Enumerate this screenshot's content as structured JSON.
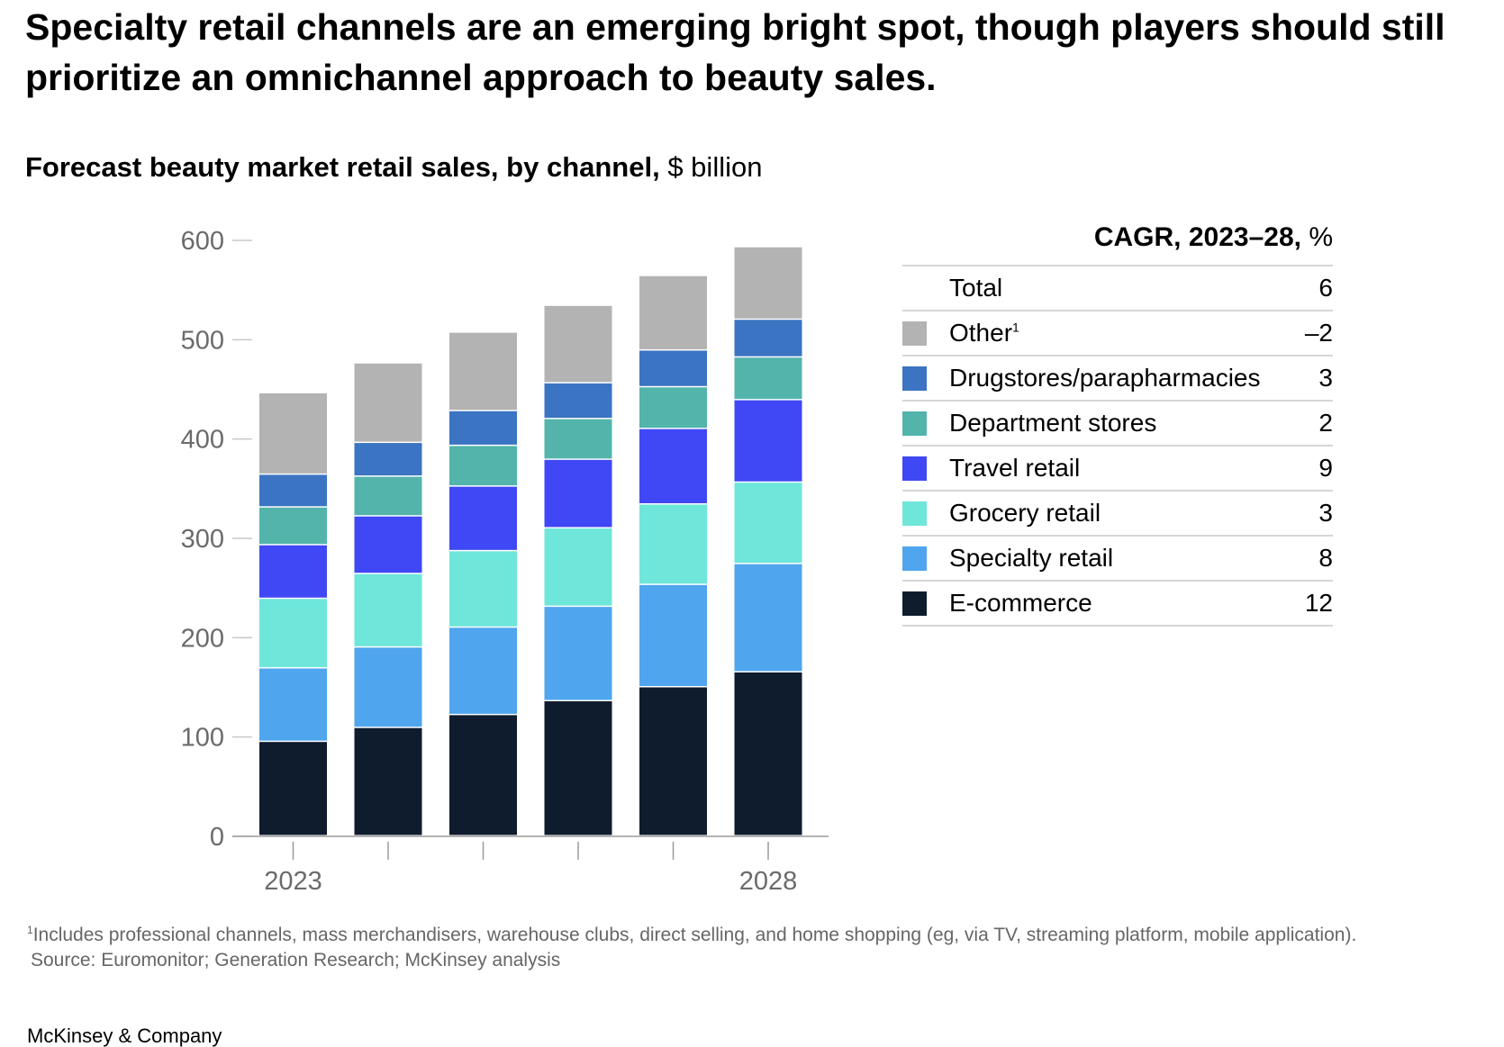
{
  "title": "Specialty retail channels are an emerging bright spot, though players should still prioritize an omnichannel approach to beauty sales.",
  "subtitle": {
    "bold": "Forecast beauty market retail sales, by channel,",
    "unit": " $ billion"
  },
  "chart_data": {
    "type": "bar",
    "stacked": true,
    "title": "Forecast beauty market retail sales, by channel, $ billion",
    "categories": [
      "2023",
      "2024",
      "2025",
      "2026",
      "2027",
      "2028"
    ],
    "x_tick_labels": [
      "2023",
      "",
      "",
      "",
      "",
      "2028"
    ],
    "ylim": [
      0,
      600
    ],
    "yticks": [
      0,
      100,
      200,
      300,
      400,
      500,
      600
    ],
    "series": [
      {
        "name": "E-commerce",
        "color": "#0f1c2e",
        "values": [
          95,
          109,
          122,
          136,
          150,
          165
        ]
      },
      {
        "name": "Specialty retail",
        "color": "#4fa5ee",
        "values": [
          74,
          81,
          88,
          95,
          103,
          109
        ]
      },
      {
        "name": "Grocery retail",
        "color": "#6ee6da",
        "values": [
          70,
          74,
          77,
          79,
          81,
          82
        ]
      },
      {
        "name": "Travel retail",
        "color": "#3f48f4",
        "values": [
          54,
          58,
          65,
          69,
          76,
          83
        ]
      },
      {
        "name": "Department stores",
        "color": "#52b4ab",
        "values": [
          38,
          40,
          41,
          41,
          42,
          43
        ]
      },
      {
        "name": "Drugstores/parapharmacies",
        "color": "#3b74c2",
        "values": [
          33,
          34,
          35,
          36,
          37,
          38
        ]
      },
      {
        "name": "Other",
        "color": "#b3b3b3",
        "values": [
          82,
          80,
          79,
          78,
          75,
          73
        ]
      }
    ]
  },
  "legend": {
    "header_bold": "CAGR, 2023–28,",
    "header_unit": " %",
    "rows": [
      {
        "label": "Total",
        "sup": "",
        "value": "6",
        "color": ""
      },
      {
        "label": "Other",
        "sup": "1",
        "value": "–2",
        "color": "#b3b3b3"
      },
      {
        "label": "Drugstores/parapharmacies",
        "sup": "",
        "value": "3",
        "color": "#3b74c2"
      },
      {
        "label": "Department stores",
        "sup": "",
        "value": "2",
        "color": "#52b4ab"
      },
      {
        "label": "Travel retail",
        "sup": "",
        "value": "9",
        "color": "#3f48f4"
      },
      {
        "label": "Grocery retail",
        "sup": "",
        "value": "3",
        "color": "#6ee6da"
      },
      {
        "label": "Specialty retail",
        "sup": "",
        "value": "8",
        "color": "#4fa5ee"
      },
      {
        "label": "E-commerce",
        "sup": "",
        "value": "12",
        "color": "#0f1c2e"
      }
    ]
  },
  "footnote": {
    "sup": "1",
    "text": "Includes professional channels, mass merchandisers, warehouse clubs, direct selling, and home shopping (eg, via TV, streaming platform, mobile application)."
  },
  "source": "Source: Euromonitor; Generation Research; McKinsey analysis",
  "brand": "McKinsey & Company"
}
